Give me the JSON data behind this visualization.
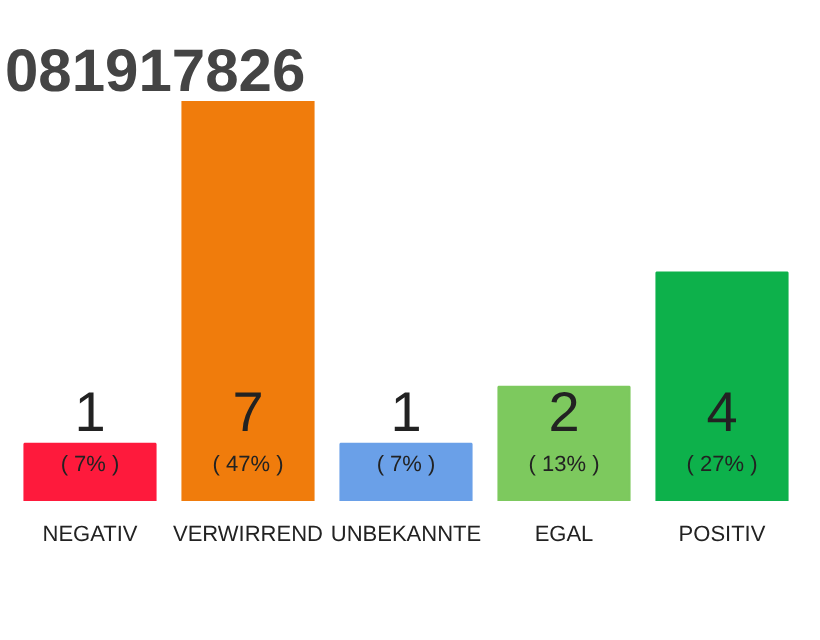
{
  "chart_data": {
    "type": "bar",
    "title": "081917826",
    "categories": [
      "NEGATIV",
      "VERWIRREND",
      "UNBEKANNTE",
      "EGAL",
      "POSITIV"
    ],
    "values": [
      1,
      7,
      1,
      2,
      4
    ],
    "colors": [
      "#fe1a3c",
      "#f07c0c",
      "#6aa0e8",
      "#7dc95e",
      "#0db14b"
    ],
    "data_labels": true,
    "annotations": [
      "( 7% )",
      "( 47% )",
      "( 7% )",
      "( 13% )",
      "( 27% )"
    ]
  }
}
